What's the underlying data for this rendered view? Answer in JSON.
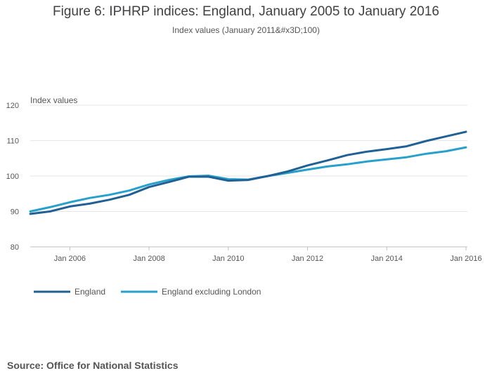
{
  "chart_title": "Figure 6: IPHRP indices: England, January 2005 to January 2016",
  "chart_subtitle": "Index values (January 2011&#x3D;100)",
  "source": "Source: Office for National Statistics",
  "colors": {
    "england": "#206095",
    "england_ex_london": "#27a0cc",
    "grid": "#e6e6e6",
    "axis_text": "#555555"
  },
  "chart_data": {
    "type": "line",
    "title": "Figure 6: IPHRP indices: England, January 2005 to January 2016",
    "subtitle": "Index values (January 2011&#x3D;100)",
    "xlabel": "",
    "ylabel": "Index values",
    "ylim": [
      80,
      120
    ],
    "yticks": [
      "80",
      "90",
      "100",
      "110",
      "120"
    ],
    "xticks": [
      "Jan 2006",
      "Jan 2008",
      "Jan 2010",
      "Jan 2012",
      "Jan 2014",
      "Jan 2016"
    ],
    "grid": true,
    "legend_position": "bottom-left",
    "x": [
      "Jan 2005",
      "Jul 2005",
      "Jan 2006",
      "Jul 2006",
      "Jan 2007",
      "Jul 2007",
      "Jan 2008",
      "Jul 2008",
      "Jan 2009",
      "Jul 2009",
      "Jan 2010",
      "Jul 2010",
      "Jan 2011",
      "Jul 2011",
      "Jan 2012",
      "Jul 2012",
      "Jan 2013",
      "Jul 2013",
      "Jan 2014",
      "Jul 2014",
      "Jan 2015",
      "Jul 2015",
      "Jan 2016"
    ],
    "series": [
      {
        "name": "England",
        "values": [
          89.3,
          90.0,
          91.4,
          92.2,
          93.3,
          94.7,
          96.9,
          98.3,
          99.8,
          99.8,
          98.7,
          98.9,
          100.0,
          101.3,
          103.0,
          104.4,
          105.9,
          106.9,
          107.6,
          108.4,
          109.9,
          111.2,
          112.5
        ]
      },
      {
        "name": "England excluding London",
        "values": [
          90.0,
          91.2,
          92.6,
          93.8,
          94.7,
          95.9,
          97.6,
          98.9,
          99.9,
          100.1,
          99.1,
          99.0,
          100.0,
          100.9,
          101.8,
          102.7,
          103.3,
          104.1,
          104.7,
          105.3,
          106.3,
          107.0,
          108.1
        ]
      }
    ]
  }
}
